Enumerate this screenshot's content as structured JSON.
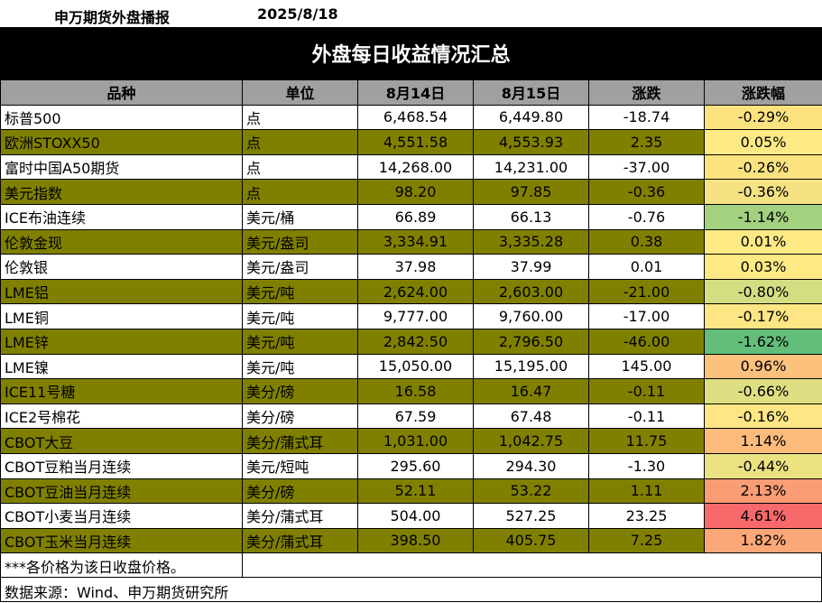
{
  "header": {
    "name": "申万期货外盘播报",
    "date": "2025/8/18"
  },
  "title": "外盘每日收益情况汇总",
  "columns": [
    "品种",
    "单位",
    "8月14日",
    "8月15日",
    "涨跌",
    "涨跌幅"
  ],
  "rows": [
    {
      "name": "标普500",
      "unit": "点",
      "d14": "6,468.54",
      "d15": "6,449.80",
      "chg": "-18.74",
      "pct": "-0.29%",
      "pct_color": "#fde380"
    },
    {
      "name": "欧洲STOXX50",
      "unit": "点",
      "d14": "4,551.58",
      "d15": "4,553.93",
      "chg": "2.35",
      "pct": "0.05%",
      "pct_color": "#feea84"
    },
    {
      "name": "富时中国A50期货",
      "unit": "点",
      "d14": "14,268.00",
      "d15": "14,231.00",
      "chg": "-37.00",
      "pct": "-0.26%",
      "pct_color": "#fde380"
    },
    {
      "name": "美元指数",
      "unit": "点",
      "d14": "98.20",
      "d15": "97.85",
      "chg": "-0.36",
      "pct": "-0.36%",
      "pct_color": "#f5e283"
    },
    {
      "name": "ICE布油连续",
      "unit": "美元/桶",
      "d14": "66.89",
      "d15": "66.13",
      "chg": "-0.76",
      "pct": "-1.14%",
      "pct_color": "#a3d17f"
    },
    {
      "name": "伦敦金现",
      "unit": "美元/盎司",
      "d14": "3,334.91",
      "d15": "3,335.28",
      "chg": "0.38",
      "pct": "0.01%",
      "pct_color": "#feea84"
    },
    {
      "name": "伦敦银",
      "unit": "美元/盎司",
      "d14": "37.98",
      "d15": "37.99",
      "chg": "0.01",
      "pct": "0.03%",
      "pct_color": "#feea84"
    },
    {
      "name": "LME铝",
      "unit": "美元/吨",
      "d14": "2,624.00",
      "d15": "2,603.00",
      "chg": "-21.00",
      "pct": "-0.80%",
      "pct_color": "#d3dd81"
    },
    {
      "name": "LME铜",
      "unit": "美元/吨",
      "d14": "9,777.00",
      "d15": "9,760.00",
      "chg": "-17.00",
      "pct": "-0.17%",
      "pct_color": "#fde683"
    },
    {
      "name": "LME锌",
      "unit": "美元/吨",
      "d14": "2,842.50",
      "d15": "2,796.50",
      "chg": "-46.00",
      "pct": "-1.62%",
      "pct_color": "#63be7b"
    },
    {
      "name": "LME镍",
      "unit": "美元/吨",
      "d14": "15,050.00",
      "d15": "15,195.00",
      "chg": "145.00",
      "pct": "0.96%",
      "pct_color": "#fcc17c"
    },
    {
      "name": "ICE11号糖",
      "unit": "美分/磅",
      "d14": "16.58",
      "d15": "16.47",
      "chg": "-0.11",
      "pct": "-0.66%",
      "pct_color": "#dedf82"
    },
    {
      "name": "ICE2号棉花",
      "unit": "美分/磅",
      "d14": "67.59",
      "d15": "67.48",
      "chg": "-0.11",
      "pct": "-0.16%",
      "pct_color": "#fde683"
    },
    {
      "name": "CBOT大豆",
      "unit": "美分/蒲式耳",
      "d14": "1,031.00",
      "d15": "1,042.75",
      "chg": "11.75",
      "pct": "1.14%",
      "pct_color": "#fcbb7b"
    },
    {
      "name": "CBOT豆粕当月连续",
      "unit": "美元/短吨",
      "d14": "295.60",
      "d15": "294.30",
      "chg": "-1.30",
      "pct": "-0.44%",
      "pct_color": "#ebe282"
    },
    {
      "name": "CBOT豆油当月连续",
      "unit": "美分/磅",
      "d14": "52.11",
      "d15": "53.22",
      "chg": "1.11",
      "pct": "2.13%",
      "pct_color": "#fa9d75"
    },
    {
      "name": "CBOT小麦当月连续",
      "unit": "美分/蒲式耳",
      "d14": "504.00",
      "d15": "527.25",
      "chg": "23.25",
      "pct": "4.61%",
      "pct_color": "#f8696b"
    },
    {
      "name": "CBOT玉米当月连续",
      "unit": "美分/蒲式耳",
      "d14": "398.50",
      "d15": "405.75",
      "chg": "7.25",
      "pct": "1.82%",
      "pct_color": "#fba777"
    }
  ],
  "footer": {
    "note": "***各价格为该日收盘价格。",
    "source": "数据来源：Wind、申万期货研究所"
  }
}
